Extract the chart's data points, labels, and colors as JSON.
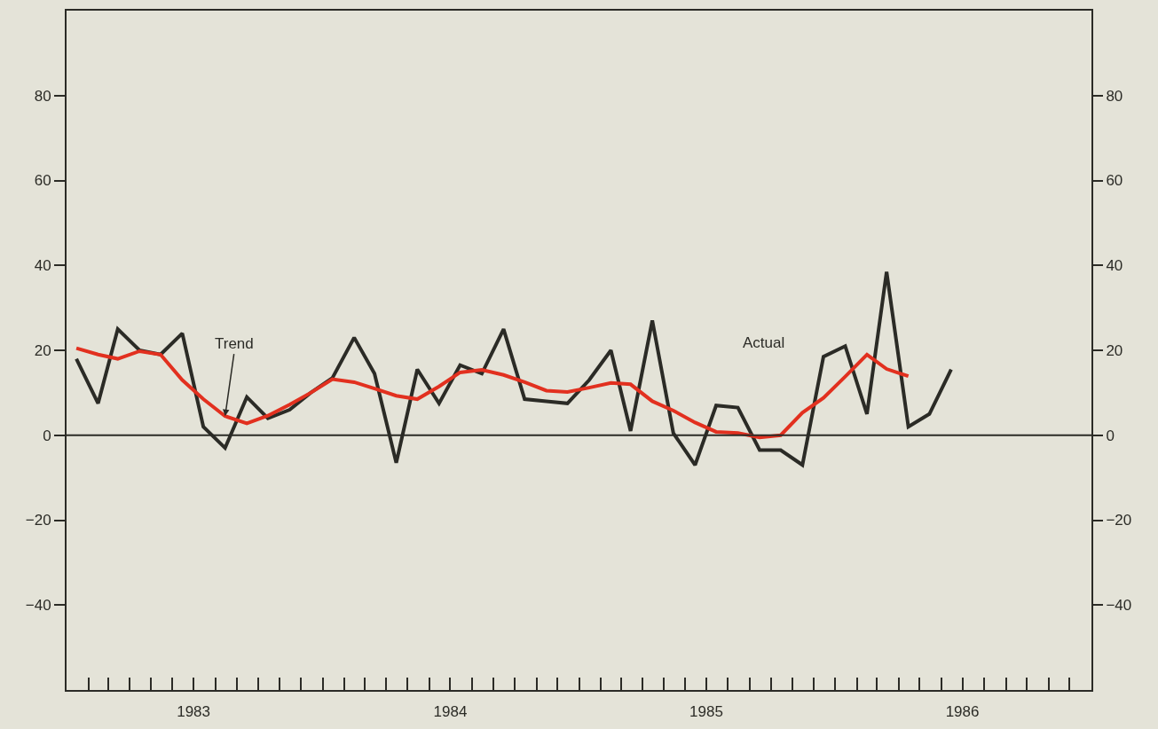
{
  "chart_data": {
    "type": "line",
    "x": [
      "1983-01-15",
      "1983-02-15",
      "1983-03-15",
      "1983-04-15",
      "1983-05-15",
      "1983-06-15",
      "1983-07-15",
      "1983-08-15",
      "1983-09-15",
      "1983-10-15",
      "1983-11-15",
      "1983-12-15",
      "1984-01-15",
      "1984-02-15",
      "1984-03-15",
      "1984-04-15",
      "1984-05-15",
      "1984-06-15",
      "1984-07-15",
      "1984-08-15",
      "1984-09-15",
      "1984-10-15",
      "1984-11-15",
      "1984-12-15",
      "1985-01-15",
      "1985-02-15",
      "1985-03-15",
      "1985-04-15",
      "1985-05-15",
      "1985-06-15",
      "1985-07-15",
      "1985-08-15",
      "1985-09-15",
      "1985-10-15",
      "1985-11-15",
      "1985-12-15",
      "1986-01-15",
      "1986-02-15",
      "1986-03-15",
      "1986-04-15",
      "1986-05-15",
      "1986-06-15"
    ],
    "series": [
      {
        "color": "#2b2b26",
        "values": [
          18,
          7.5,
          25,
          20,
          19,
          24,
          2,
          -3,
          9,
          4,
          6,
          10,
          13.5,
          23,
          14.5,
          -6.5,
          15.5,
          7.5,
          16.5,
          14.5,
          25,
          8.5,
          8,
          7.5,
          13,
          20,
          1,
          27,
          0.5,
          -7,
          7,
          6.5,
          -3.5,
          -3.5,
          -7,
          18.5,
          21,
          5,
          38.5,
          2,
          5,
          15.5
        ]
      },
      {
        "color": "#e2301f",
        "values": [
          20.5,
          19,
          18,
          19.8,
          19,
          13,
          8.5,
          4.5,
          2.8,
          4.6,
          7.2,
          10,
          13.2,
          12.5,
          11,
          9.3,
          8.5,
          11.5,
          14.8,
          15.4,
          14.2,
          12.5,
          10.5,
          10.2,
          11.2,
          12.3,
          12,
          8,
          5.8,
          3,
          0.8,
          0.5,
          -0.5,
          0,
          5.3,
          8.8,
          13.8,
          19,
          15.6,
          13.9,
          null,
          null
        ]
      }
    ],
    "annotations": [
      {
        "text": "Trend",
        "x": "1983-08-15",
        "y": 4.5
      },
      {
        "text": "Actual",
        "x": "1985-12-15",
        "y": 18.5
      }
    ],
    "ylim": [
      -60,
      100
    ],
    "yticks": [
      {
        "value": -40,
        "label": "−40"
      },
      {
        "value": -20,
        "label": "−20"
      },
      0,
      20,
      40,
      60,
      80
    ],
    "y2lim": [
      -60,
      100
    ],
    "y2ticks": [
      {
        "value": -40,
        "label": "−40"
      },
      {
        "value": -20,
        "label": "−20"
      },
      0,
      20,
      40,
      60,
      80
    ],
    "xlim": [
      "1983-01-01",
      "1987-01-01"
    ],
    "xticks": [
      {
        "value": "1983-02-01",
        "label": null
      },
      {
        "value": "1983-03-01",
        "label": null
      },
      {
        "value": "1983-04-01",
        "label": null
      },
      {
        "value": "1983-05-01",
        "label": null
      },
      {
        "value": "1983-06-01",
        "label": null
      },
      {
        "value": "1983-07-01",
        "label": "1983"
      },
      {
        "value": "1983-08-01",
        "label": null
      },
      {
        "value": "1983-09-01",
        "label": null
      },
      {
        "value": "1983-10-01",
        "label": null
      },
      {
        "value": "1983-11-01",
        "label": null
      },
      {
        "value": "1983-12-01",
        "label": null
      },
      {
        "value": "1984-01-01",
        "label": null
      },
      {
        "value": "1984-02-01",
        "label": null
      },
      {
        "value": "1984-03-01",
        "label": null
      },
      {
        "value": "1984-04-01",
        "label": null
      },
      {
        "value": "1984-05-01",
        "label": null
      },
      {
        "value": "1984-06-01",
        "label": null
      },
      {
        "value": "1984-07-01",
        "label": "1984"
      },
      {
        "value": "1984-08-01",
        "label": null
      },
      {
        "value": "1984-09-01",
        "label": null
      },
      {
        "value": "1984-10-01",
        "label": null
      },
      {
        "value": "1984-11-01",
        "label": null
      },
      {
        "value": "1984-12-01",
        "label": null
      },
      {
        "value": "1985-01-01",
        "label": null
      },
      {
        "value": "1985-02-01",
        "label": null
      },
      {
        "value": "1985-03-01",
        "label": null
      },
      {
        "value": "1985-04-01",
        "label": null
      },
      {
        "value": "1985-05-01",
        "label": null
      },
      {
        "value": "1985-06-01",
        "label": null
      },
      {
        "value": "1985-07-01",
        "label": "1985"
      },
      {
        "value": "1985-08-01",
        "label": null
      },
      {
        "value": "1985-09-01",
        "label": null
      },
      {
        "value": "1985-10-01",
        "label": null
      },
      {
        "value": "1985-11-01",
        "label": null
      },
      {
        "value": "1985-12-01",
        "label": null
      },
      {
        "value": "1986-01-01",
        "label": null
      },
      {
        "value": "1986-02-01",
        "label": null
      },
      {
        "value": "1986-03-01",
        "label": null
      },
      {
        "value": "1986-04-01",
        "label": null
      },
      {
        "value": "1986-05-01",
        "label": null
      },
      {
        "value": "1986-06-01",
        "label": null
      },
      {
        "value": "1986-07-01",
        "label": "1986"
      },
      {
        "value": "1986-08-01",
        "label": null
      },
      {
        "value": "1986-09-01",
        "label": null
      },
      {
        "value": "1986-10-01",
        "label": null
      },
      {
        "value": "1986-11-01",
        "label": null
      },
      {
        "value": "1986-12-01",
        "label": null
      }
    ],
    "ref_lines": [
      {
        "axis": "y",
        "value": 0,
        "color": "#2b2b26"
      }
    ],
    "grid": false,
    "legend": false,
    "marker": "none",
    "line_style": "solid"
  }
}
